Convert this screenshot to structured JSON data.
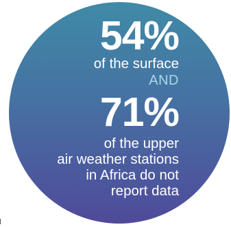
{
  "stat1": {
    "value": "54%",
    "caption": "of the surface"
  },
  "connector": "AND",
  "stat2": {
    "value": "71%",
    "caption_lines": [
      "of the upper",
      "air weather stations",
      "in Africa do not",
      "report data"
    ]
  },
  "colors": {
    "gradient_top": "#3f8aa7",
    "gradient_bottom": "#4f4a9a",
    "connector_text": "#a9d8e8",
    "text": "#ffffff"
  }
}
